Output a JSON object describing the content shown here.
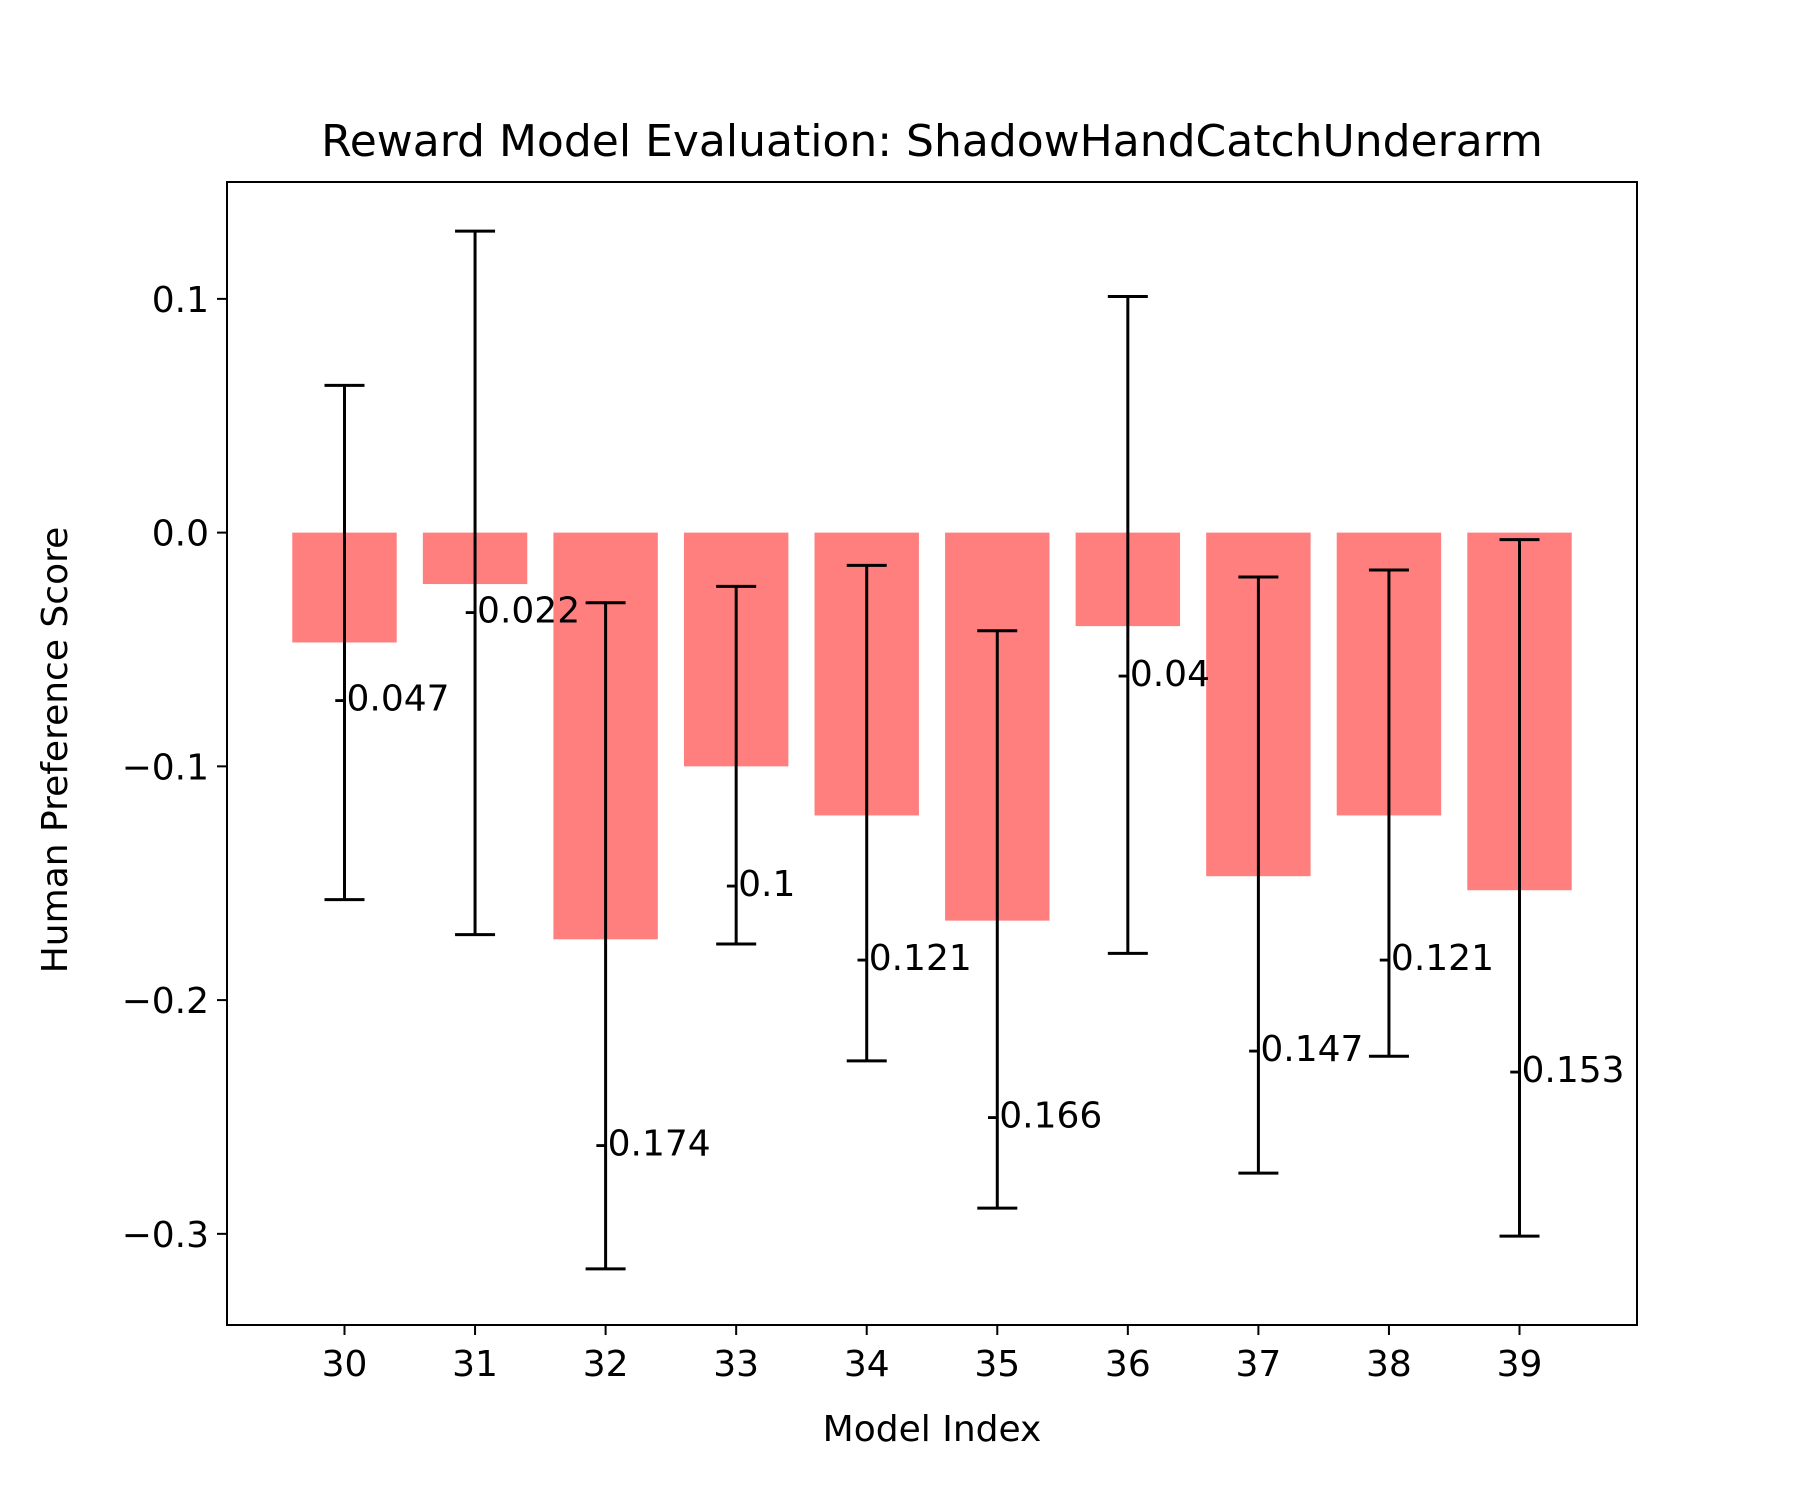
{
  "chart_data": {
    "type": "bar",
    "title": "Reward Model Evaluation: ShadowHandCatchUnderarm",
    "xlabel": "Model Index",
    "ylabel": "Human Preference Score",
    "categories": [
      "30",
      "31",
      "32",
      "33",
      "34",
      "35",
      "36",
      "37",
      "38",
      "39"
    ],
    "values": [
      -0.047,
      -0.022,
      -0.174,
      -0.1,
      -0.121,
      -0.166,
      -0.04,
      -0.147,
      -0.121,
      -0.153
    ],
    "value_labels": [
      "-0.047",
      "-0.022",
      "-0.174",
      "-0.1",
      "-0.121",
      "-0.166",
      "-0.04",
      "-0.147",
      "-0.121",
      "-0.153"
    ],
    "error_low": [
      -0.157,
      -0.172,
      -0.315,
      -0.176,
      -0.226,
      -0.289,
      -0.18,
      -0.274,
      -0.224,
      -0.301
    ],
    "error_high": [
      0.063,
      0.129,
      -0.03,
      -0.023,
      -0.014,
      -0.042,
      0.101,
      -0.019,
      -0.016,
      -0.003
    ],
    "ylim": [
      -0.339,
      0.15
    ],
    "yticks": [
      0.1,
      0.0,
      -0.1,
      -0.2,
      -0.3
    ],
    "ytick_labels": [
      "0.1",
      "0.0",
      "−0.1",
      "−0.2",
      "−0.3"
    ],
    "grid": false,
    "bar_color": "#ff7f7f",
    "error_color": "#000000"
  }
}
